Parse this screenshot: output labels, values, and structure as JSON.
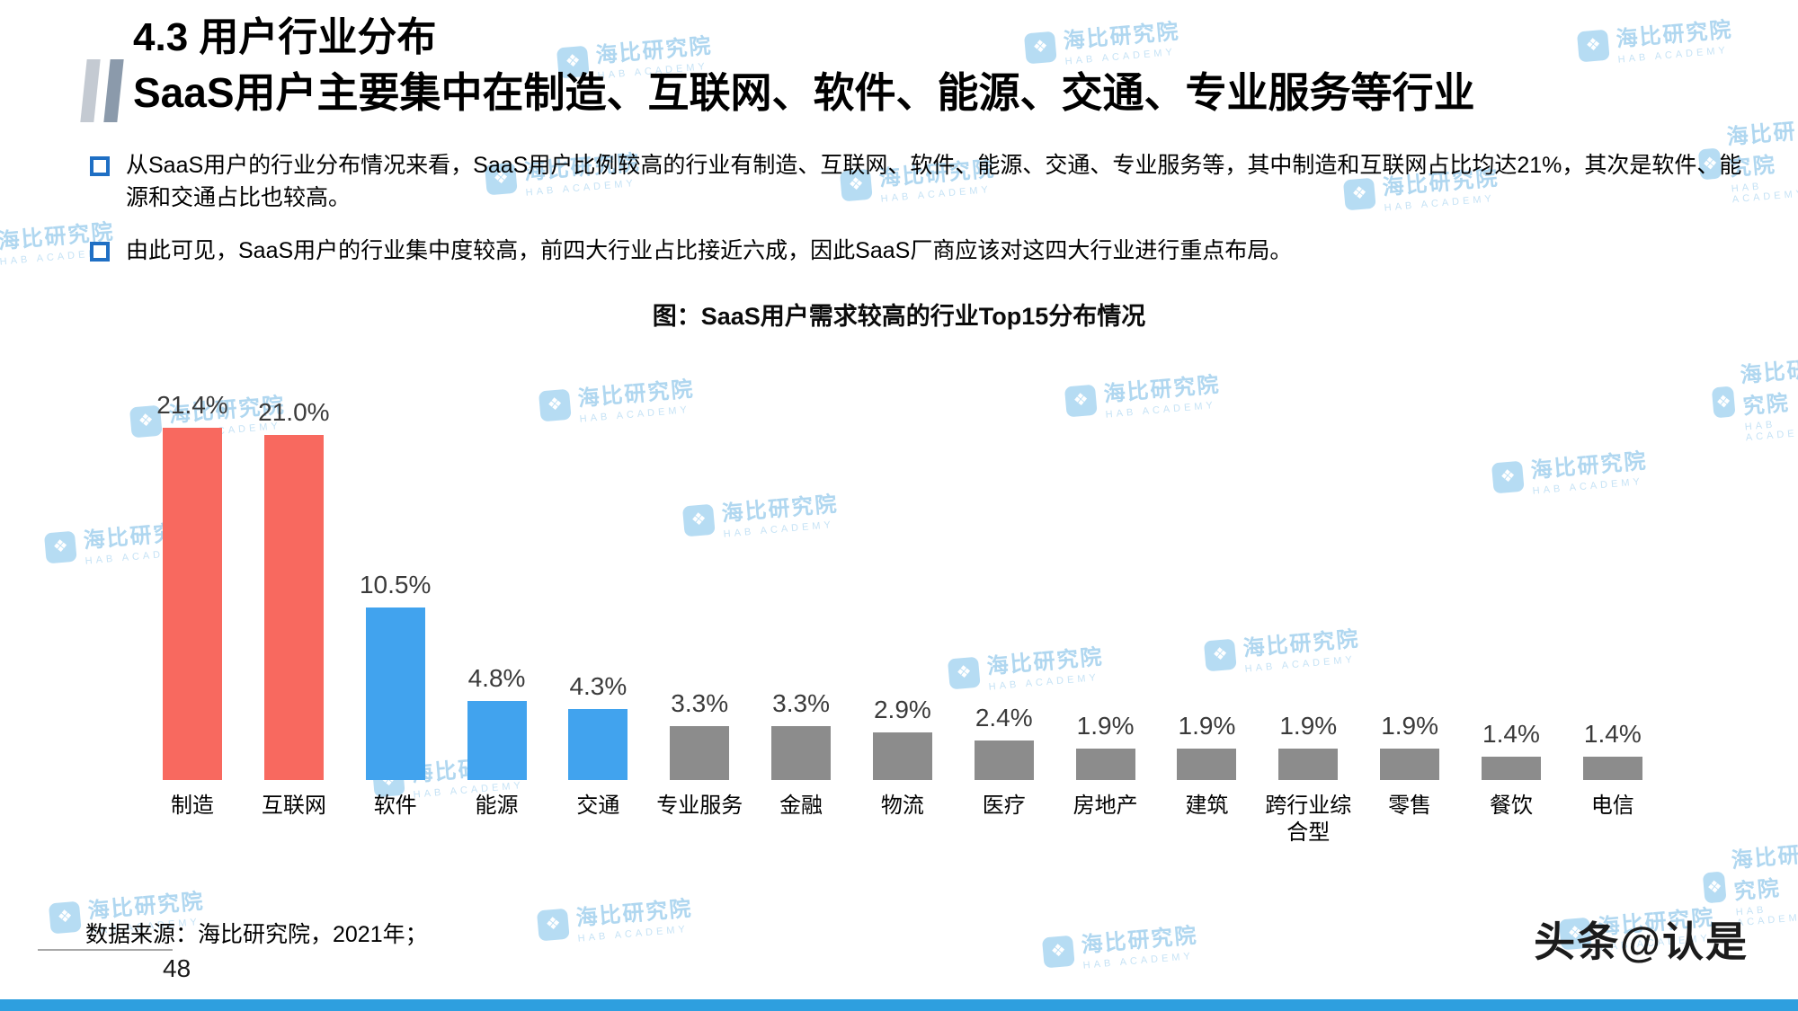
{
  "header": {
    "section_title": "4.3 用户行业分布",
    "subtitle": "SaaS用户主要集中在制造、互联网、软件、能源、交通、专业服务等行业"
  },
  "bullets": [
    "从SaaS用户的行业分布情况来看，SaaS用户比例较高的行业有制造、互联网、软件、能源、交通、专业服务等，其中制造和互联网占比均达21%，其次是软件、能源和交通占比也较高。",
    "由此可见，SaaS用户的行业集中度较高，前四大行业占比接近六成，因此SaaS厂商应该对这四大行业进行重点布局。"
  ],
  "chart_data": {
    "type": "bar",
    "title": "图：SaaS用户需求较高的行业Top15分布情况",
    "categories": [
      "制造",
      "互联网",
      "软件",
      "能源",
      "交通",
      "专业服务",
      "金融",
      "物流",
      "医疗",
      "房地产",
      "建筑",
      "跨行业综合型",
      "零售",
      "餐饮",
      "电信"
    ],
    "values": [
      21.4,
      21.0,
      10.5,
      4.8,
      4.3,
      3.3,
      3.3,
      2.9,
      2.4,
      1.9,
      1.9,
      1.9,
      1.9,
      1.4,
      1.4
    ],
    "labels": [
      "21.4%",
      "21.0%",
      "10.5%",
      "4.8%",
      "4.3%",
      "3.3%",
      "3.3%",
      "2.9%",
      "2.4%",
      "1.9%",
      "1.9%",
      "1.9%",
      "1.9%",
      "1.4%",
      "1.4%"
    ],
    "bar_colors": [
      "#f8695f",
      "#f8695f",
      "#41a3ee",
      "#41a3ee",
      "#41a3ee",
      "#8c8c8c",
      "#8c8c8c",
      "#8c8c8c",
      "#8c8c8c",
      "#8c8c8c",
      "#8c8c8c",
      "#8c8c8c",
      "#8c8c8c",
      "#8c8c8c",
      "#8c8c8c"
    ],
    "xlabel": "",
    "ylabel": "",
    "ylim": [
      0,
      23
    ],
    "grid": false,
    "legend": false,
    "value_labels_shown": true
  },
  "colors": {
    "red_bar": "#f8695f",
    "blue_bar": "#41a3ee",
    "gray_bar": "#8c8c8c",
    "bullet_square": "#1f6fc4",
    "bottom_strip": "#2e9fdf",
    "watermark_blue": "#a3d1ee"
  },
  "watermark": {
    "logo_glyph": "❖",
    "text": "海比研究院",
    "subtext": "HAB ACADEMY"
  },
  "footer": {
    "source": "数据来源：海比研究院，2021年；",
    "page_number": "48",
    "branding": "头条@认是"
  }
}
